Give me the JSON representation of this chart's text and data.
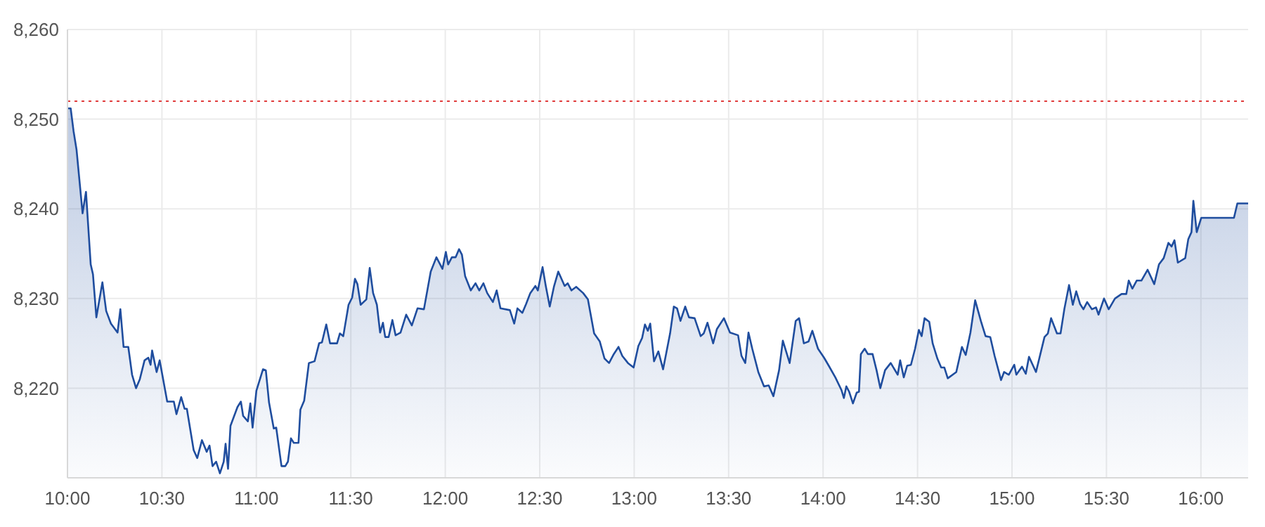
{
  "chart_data": {
    "type": "area",
    "xlim": [
      10,
      16.25
    ],
    "ylim": [
      8210,
      8260
    ],
    "xticks": [
      {
        "value": 10,
        "label": "10:00"
      },
      {
        "value": 10.5,
        "label": "10:30"
      },
      {
        "value": 11,
        "label": "11:00"
      },
      {
        "value": 11.5,
        "label": "11:30"
      },
      {
        "value": 12,
        "label": "12:00"
      },
      {
        "value": 12.5,
        "label": "12:30"
      },
      {
        "value": 13,
        "label": "13:00"
      },
      {
        "value": 13.5,
        "label": "13:30"
      },
      {
        "value": 14,
        "label": "14:00"
      },
      {
        "value": 14.5,
        "label": "14:30"
      },
      {
        "value": 15,
        "label": "15:00"
      },
      {
        "value": 15.5,
        "label": "15:30"
      },
      {
        "value": 16,
        "label": "16:00"
      }
    ],
    "yticks": [
      {
        "value": 8220,
        "label": "8,220"
      },
      {
        "value": 8230,
        "label": "8,230"
      },
      {
        "value": 8240,
        "label": "8,240"
      },
      {
        "value": 8250,
        "label": "8,250"
      },
      {
        "value": 8260,
        "label": "8,260"
      }
    ],
    "grid": true,
    "ref_lines": [
      {
        "axis": "y",
        "value": 8252,
        "color": "#e03c3c",
        "line_style": "dotted"
      }
    ],
    "series": [
      {
        "color": "#1f4d9e",
        "line_style": "solid",
        "x": [
          10.0,
          10.017,
          10.032,
          10.048,
          10.08,
          10.098,
          10.123,
          10.135,
          10.153,
          10.185,
          10.205,
          10.23,
          10.265,
          10.28,
          10.297,
          10.322,
          10.342,
          10.363,
          10.383,
          10.408,
          10.428,
          10.44,
          10.448,
          10.472,
          10.488,
          10.528,
          10.563,
          10.577,
          10.602,
          10.62,
          10.632,
          10.668,
          10.687,
          10.712,
          10.737,
          10.752,
          10.768,
          10.787,
          10.807,
          10.827,
          10.837,
          10.85,
          10.863,
          10.9,
          10.918,
          10.93,
          10.955,
          10.968,
          10.98,
          11.0,
          11.035,
          11.05,
          11.067,
          11.092,
          11.105,
          11.133,
          11.153,
          11.167,
          11.183,
          11.198,
          11.223,
          11.233,
          11.253,
          11.278,
          11.308,
          11.332,
          11.347,
          11.37,
          11.39,
          11.427,
          11.442,
          11.46,
          11.488,
          11.507,
          11.522,
          11.535,
          11.552,
          11.582,
          11.6,
          11.618,
          11.638,
          11.655,
          11.67,
          11.682,
          11.7,
          11.72,
          11.737,
          11.763,
          11.793,
          11.823,
          11.853,
          11.887,
          11.923,
          11.953,
          11.985,
          12.003,
          12.015,
          12.035,
          12.055,
          12.073,
          12.088,
          12.105,
          12.135,
          12.16,
          12.18,
          12.202,
          12.222,
          12.252,
          12.272,
          12.292,
          12.342,
          12.365,
          12.382,
          12.408,
          12.428,
          12.45,
          12.477,
          12.49,
          12.515,
          12.532,
          12.553,
          12.575,
          12.598,
          12.632,
          12.648,
          12.668,
          12.693,
          12.73,
          12.755,
          12.788,
          12.818,
          12.843,
          12.867,
          12.892,
          12.917,
          12.937,
          12.967,
          12.997,
          13.022,
          13.042,
          13.057,
          13.072,
          13.085,
          13.105,
          13.128,
          13.153,
          13.19,
          13.21,
          13.227,
          13.245,
          13.27,
          13.29,
          13.32,
          13.352,
          13.368,
          13.388,
          13.418,
          13.438,
          13.475,
          13.507,
          13.55,
          13.568,
          13.588,
          13.605,
          13.625,
          13.657,
          13.687,
          13.712,
          13.737,
          13.767,
          13.787,
          13.823,
          13.855,
          13.873,
          13.898,
          13.923,
          13.943,
          13.973,
          14.005,
          14.03,
          14.065,
          14.097,
          14.11,
          14.123,
          14.138,
          14.158,
          14.178,
          14.19,
          14.2,
          14.22,
          14.237,
          14.262,
          14.283,
          14.303,
          14.328,
          14.358,
          14.395,
          14.408,
          14.427,
          14.445,
          14.465,
          14.487,
          14.507,
          14.522,
          14.537,
          14.562,
          14.58,
          14.605,
          14.625,
          14.642,
          14.66,
          14.705,
          14.735,
          14.755,
          14.78,
          14.805,
          14.835,
          14.86,
          14.885,
          14.908,
          14.942,
          14.958,
          14.983,
          15.012,
          15.023,
          15.053,
          15.073,
          15.09,
          15.127,
          15.172,
          15.19,
          15.207,
          15.238,
          15.257,
          15.277,
          15.302,
          15.322,
          15.34,
          15.36,
          15.378,
          15.398,
          15.423,
          15.445,
          15.458,
          15.487,
          15.512,
          15.545,
          15.58,
          15.605,
          15.618,
          15.637,
          15.66,
          15.685,
          15.718,
          15.753,
          15.778,
          15.803,
          15.828,
          15.845,
          15.86,
          15.878,
          15.917,
          15.933,
          15.95,
          15.96,
          15.978,
          16.002,
          16.175,
          16.193,
          16.25
        ],
        "values": [
          8251.2,
          8251.2,
          8248.7,
          8246.6,
          8239.5,
          8241.9,
          8233.8,
          8232.7,
          8227.9,
          8231.8,
          8228.6,
          8227.2,
          8226.2,
          8228.8,
          8224.6,
          8224.6,
          8221.5,
          8220.0,
          8221.0,
          8223.1,
          8223.4,
          8222.6,
          8224.2,
          8221.8,
          8223.1,
          8218.5,
          8218.5,
          8217.1,
          8219.0,
          8217.7,
          8217.7,
          8213.1,
          8212.2,
          8214.2,
          8212.9,
          8213.6,
          8211.3,
          8211.8,
          8210.5,
          8211.8,
          8213.8,
          8211.0,
          8215.8,
          8217.9,
          8218.5,
          8216.9,
          8216.3,
          8218.3,
          8215.6,
          8219.7,
          8222.1,
          8222.0,
          8218.4,
          8215.5,
          8215.6,
          8211.3,
          8211.3,
          8211.8,
          8214.4,
          8213.9,
          8213.9,
          8217.6,
          8218.6,
          8222.8,
          8223.0,
          8225.0,
          8225.1,
          8227.1,
          8225.0,
          8225.0,
          8226.1,
          8225.8,
          8229.3,
          8230.1,
          8232.2,
          8231.6,
          8229.3,
          8229.9,
          8233.4,
          8230.6,
          8229.3,
          8226.2,
          8227.3,
          8225.7,
          8225.7,
          8227.6,
          8225.9,
          8226.2,
          8228.2,
          8227.0,
          8228.9,
          8228.8,
          8233.0,
          8234.6,
          8233.3,
          8235.2,
          8233.8,
          8234.6,
          8234.6,
          8235.5,
          8234.9,
          8232.5,
          8230.9,
          8231.7,
          8230.9,
          8231.7,
          8230.6,
          8229.6,
          8230.9,
          8228.9,
          8228.7,
          8227.2,
          8228.9,
          8228.4,
          8229.4,
          8230.6,
          8231.4,
          8230.9,
          8233.5,
          8231.4,
          8229.1,
          8231.3,
          8233.0,
          8231.4,
          8231.7,
          8230.9,
          8231.3,
          8230.6,
          8229.9,
          8226.1,
          8225.2,
          8223.3,
          8222.8,
          8223.8,
          8224.6,
          8223.6,
          8222.8,
          8222.3,
          8224.7,
          8225.6,
          8227.1,
          8226.4,
          8227.2,
          8223.0,
          8224.1,
          8222.1,
          8226.1,
          8229.1,
          8228.9,
          8227.5,
          8229.1,
          8227.9,
          8227.8,
          8225.8,
          8226.1,
          8227.3,
          8225.0,
          8226.6,
          8227.8,
          8226.2,
          8225.9,
          8223.6,
          8222.8,
          8226.2,
          8224.4,
          8221.8,
          8220.2,
          8220.3,
          8219.1,
          8222.0,
          8225.3,
          8222.8,
          8227.5,
          8227.8,
          8225.0,
          8225.2,
          8226.4,
          8224.4,
          8223.4,
          8222.5,
          8221.2,
          8219.8,
          8218.9,
          8220.2,
          8219.6,
          8218.3,
          8219.5,
          8219.6,
          8223.8,
          8224.4,
          8223.8,
          8223.8,
          8222.0,
          8220.0,
          8222.0,
          8222.8,
          8221.5,
          8223.1,
          8221.2,
          8222.5,
          8222.6,
          8224.4,
          8226.5,
          8225.8,
          8227.8,
          8227.4,
          8225.0,
          8223.3,
          8222.3,
          8222.3,
          8221.1,
          8221.8,
          8224.6,
          8223.7,
          8226.2,
          8229.8,
          8227.5,
          8225.8,
          8225.7,
          8223.6,
          8220.9,
          8221.8,
          8221.5,
          8222.6,
          8221.5,
          8222.4,
          8221.6,
          8223.5,
          8221.8,
          8225.7,
          8226.1,
          8227.8,
          8226.1,
          8226.1,
          8228.8,
          8231.5,
          8229.3,
          8230.8,
          8229.4,
          8228.8,
          8229.6,
          8228.8,
          8229.0,
          8228.2,
          8230.0,
          8228.8,
          8230.0,
          8230.5,
          8230.5,
          8232.0,
          8231.1,
          8232.0,
          8232.0,
          8233.2,
          8231.6,
          8233.8,
          8234.5,
          8236.2,
          8235.8,
          8236.5,
          8234.0,
          8234.5,
          8236.6,
          8237.4,
          8240.9,
          8237.4,
          8239.0,
          8239.0,
          8240.6,
          8240.6
        ]
      }
    ]
  }
}
